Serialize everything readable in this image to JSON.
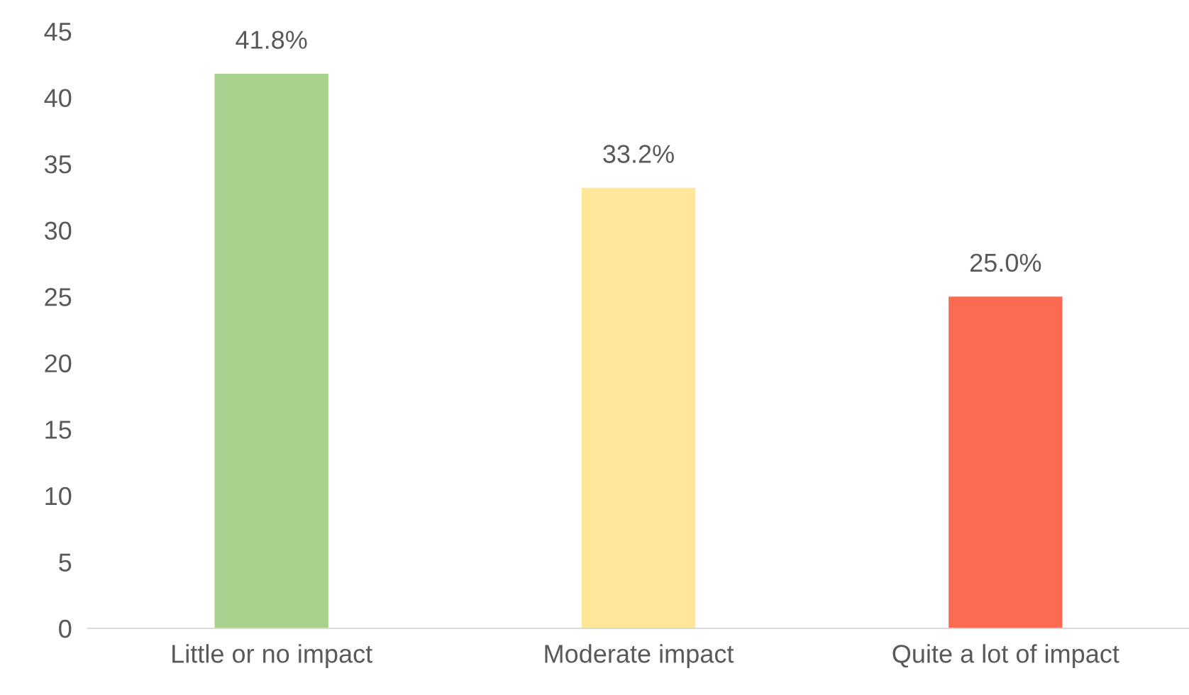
{
  "chart_data": {
    "type": "bar",
    "categories": [
      "Little or no impact",
      "Moderate impact",
      "Quite a lot of impact"
    ],
    "values": [
      41.8,
      33.2,
      25.0
    ],
    "colors": [
      "#a9d18e",
      "#ffe699",
      "#fd6a52"
    ],
    "value_labels": [
      "41.8%",
      "33.2%",
      "25.0%"
    ],
    "ylim": [
      0,
      45
    ],
    "yticks": [
      0,
      5,
      10,
      15,
      20,
      25,
      30,
      35,
      40,
      45
    ],
    "grid": false,
    "legend": false
  }
}
